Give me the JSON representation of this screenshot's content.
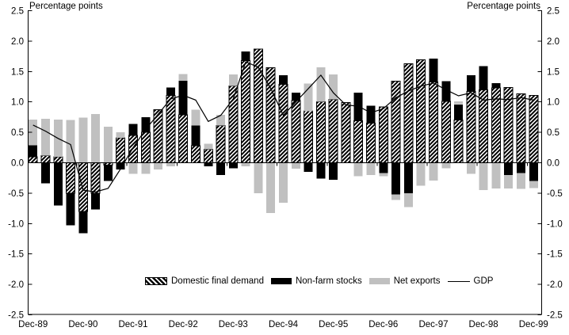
{
  "colors": {
    "background": "#ffffff",
    "text": "#000000",
    "hatch_foreground": "#000000",
    "non_farm_stocks": "#000000",
    "net_exports": "#c0c0c0",
    "gdp_line": "#000000"
  },
  "legend": {
    "items": [
      {
        "label": "Domestic final demand",
        "swatch": "hatched"
      },
      {
        "label": "Non-farm stocks",
        "swatch": "black"
      },
      {
        "label": "Net exports",
        "swatch": "gray"
      },
      {
        "label": "GDP",
        "swatch": "line"
      }
    ]
  },
  "chart_data": {
    "type": "bar",
    "subtype": "stacked-bars-with-line",
    "left_axis_title": "Percentage points",
    "right_axis_title": "Percentage points",
    "ylim": [
      -2.5,
      2.5
    ],
    "grid": false,
    "legend_position": "bottom-center",
    "y_tick_labels": [
      "2.5",
      "2.0",
      "1.5",
      "1.0",
      "0.5",
      "0.0",
      "-0.5",
      "-1.0",
      "-1.5",
      "-2.0",
      "-2.5"
    ],
    "x_tick_labels": [
      "Dec-89",
      "Dec-90",
      "Dec-91",
      "Dec-92",
      "Dec-93",
      "Dec-94",
      "Dec-95",
      "Dec-96",
      "Dec-97",
      "Dec-98",
      "Dec-99"
    ],
    "categories": [
      "Dec-89",
      "Mar-90",
      "Jun-90",
      "Sep-90",
      "Dec-90",
      "Mar-91",
      "Jun-91",
      "Sep-91",
      "Dec-91",
      "Mar-92",
      "Jun-92",
      "Sep-92",
      "Dec-92",
      "Mar-93",
      "Jun-93",
      "Sep-93",
      "Dec-93",
      "Mar-94",
      "Jun-94",
      "Sep-94",
      "Dec-94",
      "Mar-95",
      "Jun-95",
      "Sep-95",
      "Dec-95",
      "Mar-96",
      "Jun-96",
      "Sep-96",
      "Dec-96",
      "Mar-97",
      "Jun-97",
      "Sep-97",
      "Dec-97",
      "Mar-98",
      "Jun-98",
      "Sep-98",
      "Dec-98",
      "Mar-99",
      "Jun-99",
      "Sep-99",
      "Dec-99"
    ],
    "series": [
      {
        "key": "dfd",
        "name": "Domestic final demand",
        "values": [
          0.1,
          0.12,
          0.1,
          -0.5,
          -0.8,
          -0.5,
          -0.04,
          0.41,
          0.45,
          0.5,
          0.87,
          1.11,
          0.79,
          0.28,
          0.22,
          0.61,
          1.26,
          1.68,
          1.87,
          1.56,
          1.29,
          1.02,
          0.85,
          1.0,
          1.04,
          0.99,
          0.69,
          0.65,
          0.92,
          1.34,
          1.63,
          1.69,
          1.33,
          1.01,
          0.7,
          1.17,
          1.2,
          1.23,
          1.24,
          1.13,
          1.11
        ]
      },
      {
        "key": "nfs",
        "name": "Non-farm stocks",
        "values": [
          0.19,
          -0.34,
          -0.7,
          -0.53,
          -0.36,
          -0.27,
          -0.26,
          -0.11,
          0.19,
          0.25,
          0.0,
          0.13,
          0.56,
          0.33,
          -0.06,
          -0.2,
          -0.09,
          0.15,
          0.0,
          0.0,
          0.15,
          0.13,
          -0.15,
          -0.26,
          -0.28,
          0.0,
          0.46,
          0.29,
          -0.17,
          -0.52,
          -0.5,
          0.0,
          0.38,
          0.33,
          0.26,
          0.27,
          0.39,
          0.08,
          -0.2,
          -0.17,
          -0.3
        ]
      },
      {
        "key": "nx",
        "name": "Net exports",
        "values": [
          0.42,
          0.6,
          0.61,
          0.7,
          0.74,
          0.8,
          0.59,
          0.09,
          -0.18,
          -0.18,
          -0.11,
          -0.06,
          0.11,
          0.26,
          0.09,
          0.18,
          0.19,
          -0.06,
          -0.5,
          -0.83,
          -0.66,
          -0.1,
          0.45,
          0.57,
          0.41,
          0.0,
          -0.22,
          -0.2,
          -0.05,
          -0.09,
          -0.23,
          -0.38,
          -0.29,
          -0.09,
          0.05,
          -0.18,
          -0.45,
          -0.42,
          -0.22,
          -0.26,
          -0.12
        ]
      }
    ],
    "line_series": {
      "key": "gdp",
      "name": "GDP",
      "values": [
        0.62,
        0.52,
        0.4,
        0.3,
        -0.45,
        -0.48,
        -0.42,
        -0.1,
        0.25,
        0.55,
        0.8,
        1.05,
        1.11,
        1.03,
        0.68,
        0.78,
        1.05,
        1.66,
        1.57,
        1.22,
        0.78,
        1.0,
        1.22,
        1.44,
        1.15,
        0.95,
        0.93,
        0.82,
        0.89,
        1.07,
        1.18,
        1.26,
        1.31,
        1.2,
        1.1,
        1.15,
        1.03,
        1.05,
        1.04,
        1.07,
        1.03
      ]
    }
  }
}
